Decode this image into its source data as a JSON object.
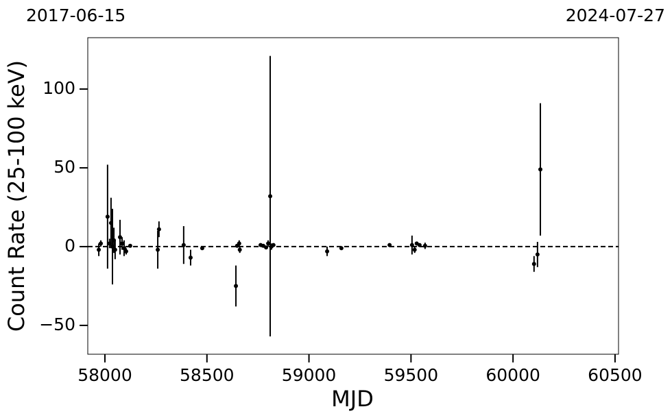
{
  "chart_data": {
    "type": "errorbar",
    "xlabel": "MJD",
    "ylabel": "Count Rate (25-100 keV)",
    "date_start": "2017-06-15",
    "date_end": "2024-07-27",
    "reference_line": 0,
    "color": "#000000",
    "xlim": [
      57916,
      60517
    ],
    "ylim": [
      -68.3,
      132.6
    ],
    "xticks": [
      58000,
      58500,
      59000,
      59500,
      60000,
      60500
    ],
    "yticks": [
      {
        "value": -50,
        "label": "−50"
      },
      0,
      50,
      100
    ],
    "x": [
      57970,
      57980,
      58013,
      58023,
      58030,
      58037,
      58044,
      58050,
      58074,
      58084,
      58094,
      58104,
      58124,
      58259,
      58265,
      58386,
      58420,
      58477,
      58642,
      58648,
      58658,
      58661,
      58763,
      58776,
      58790,
      58800,
      58810,
      58816,
      58826,
      59089,
      59159,
      59395,
      59505,
      59518,
      59528,
      59542,
      59569,
      60103,
      60120,
      60134
    ],
    "values": [
      -2,
      2,
      19,
      2,
      15,
      0,
      4,
      -2,
      6,
      2,
      -1,
      -3,
      0.5,
      -2,
      11,
      1,
      -7,
      -1,
      -25,
      0.5,
      2,
      -2,
      1,
      0.5,
      -0.5,
      2,
      32,
      0,
      1,
      -3,
      -1,
      1,
      1,
      -2,
      2,
      1,
      0.5,
      -11,
      -5,
      49
    ],
    "errors": [
      4,
      2,
      33,
      3,
      16,
      24,
      8,
      6,
      11,
      4,
      5,
      2,
      1,
      12,
      5,
      12,
      5,
      1,
      13,
      1,
      2,
      2,
      1,
      1,
      1,
      2,
      89,
      2,
      1,
      3,
      1,
      1,
      6,
      2,
      1,
      1,
      2,
      5,
      8,
      42
    ]
  }
}
